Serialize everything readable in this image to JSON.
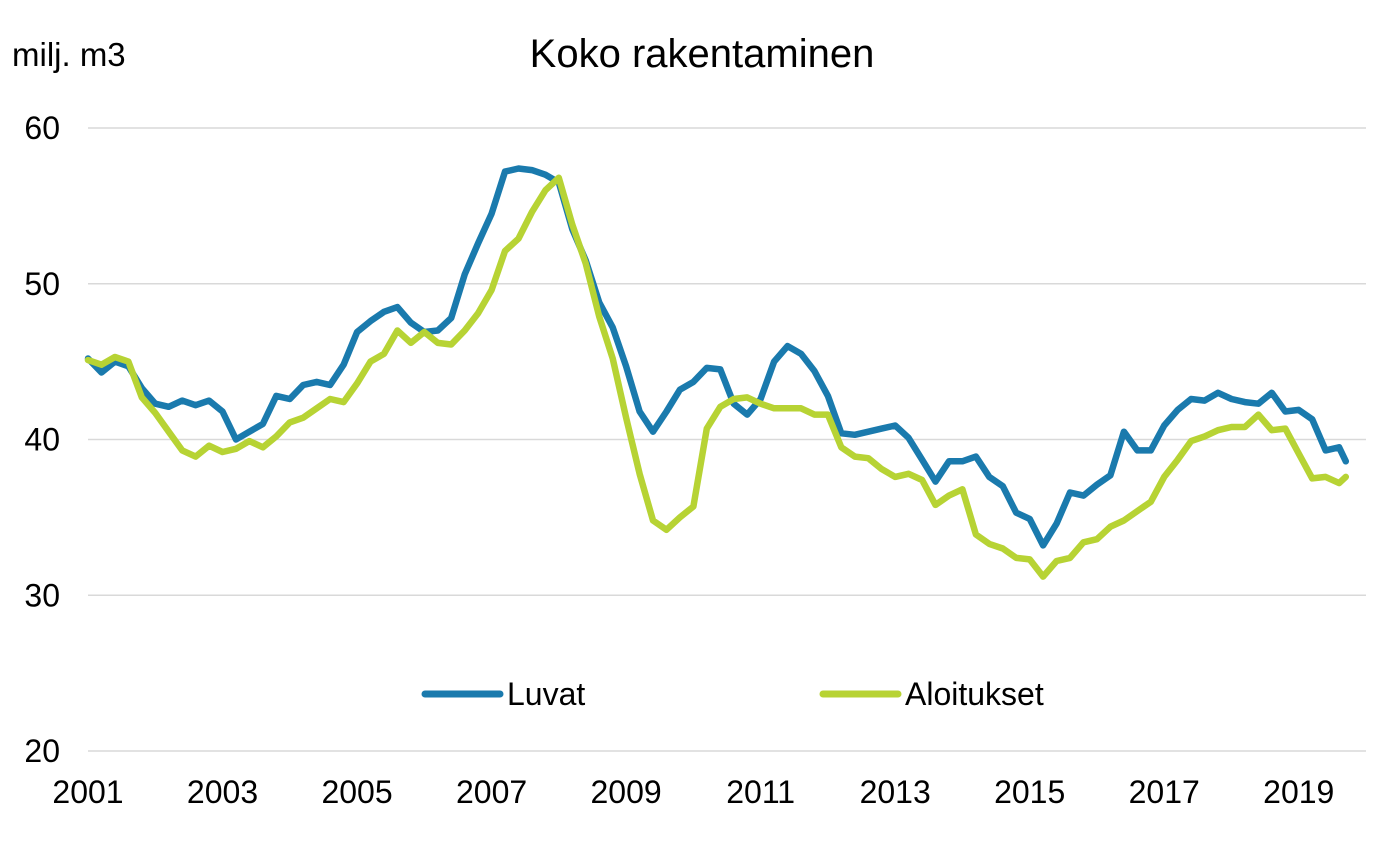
{
  "chart_data": {
    "type": "line",
    "title": "Koko rakentaminen",
    "ylabel": "milj. m3",
    "xlabel": "",
    "ylim": [
      20,
      60
    ],
    "xlim": [
      2001.0,
      2020.0
    ],
    "yticks": [
      "20",
      "30",
      "40",
      "50",
      "60"
    ],
    "xticks": [
      "2001",
      "2003",
      "2005",
      "2007",
      "2009",
      "2011",
      "2013",
      "2015",
      "2017",
      "2019"
    ],
    "grid": true,
    "legend_position": "bottom",
    "series": [
      {
        "name": "Luvat",
        "color": "#1a7aad",
        "x": [
          2001.0,
          2001.2,
          2001.4,
          2001.6,
          2001.8,
          2002.0,
          2002.2,
          2002.4,
          2002.6,
          2002.8,
          2003.0,
          2003.2,
          2003.4,
          2003.6,
          2003.8,
          2004.0,
          2004.2,
          2004.4,
          2004.6,
          2004.8,
          2005.0,
          2005.2,
          2005.4,
          2005.6,
          2005.8,
          2006.0,
          2006.2,
          2006.4,
          2006.6,
          2006.8,
          2007.0,
          2007.2,
          2007.4,
          2007.6,
          2007.8,
          2008.0,
          2008.2,
          2008.4,
          2008.6,
          2008.8,
          2009.0,
          2009.2,
          2009.4,
          2009.6,
          2009.8,
          2010.0,
          2010.2,
          2010.4,
          2010.6,
          2010.8,
          2011.0,
          2011.2,
          2011.4,
          2011.6,
          2011.8,
          2012.0,
          2012.2,
          2012.4,
          2012.6,
          2012.8,
          2013.0,
          2013.2,
          2013.4,
          2013.6,
          2013.8,
          2014.0,
          2014.2,
          2014.4,
          2014.6,
          2014.8,
          2015.0,
          2015.2,
          2015.4,
          2015.6,
          2015.8,
          2016.0,
          2016.2,
          2016.4,
          2016.6,
          2016.8,
          2017.0,
          2017.2,
          2017.4,
          2017.6,
          2017.8,
          2018.0,
          2018.2,
          2018.4,
          2018.6,
          2018.8,
          2019.0,
          2019.2,
          2019.4,
          2019.6,
          2019.7
        ],
        "values": [
          45.2,
          44.3,
          45.0,
          44.7,
          43.3,
          42.3,
          42.1,
          42.5,
          42.2,
          42.5,
          41.8,
          40.0,
          40.5,
          41.0,
          42.8,
          42.6,
          43.5,
          43.7,
          43.5,
          44.8,
          46.9,
          47.6,
          48.2,
          48.5,
          47.5,
          46.9,
          47.0,
          47.8,
          50.6,
          52.6,
          54.5,
          57.2,
          57.4,
          57.3,
          57.0,
          56.5,
          53.5,
          51.5,
          48.8,
          47.2,
          44.7,
          41.8,
          40.5,
          41.8,
          43.2,
          43.7,
          44.6,
          44.5,
          42.3,
          41.6,
          42.6,
          45.0,
          46.0,
          45.5,
          44.4,
          42.8,
          40.4,
          40.3,
          40.5,
          40.7,
          40.9,
          40.1,
          38.7,
          37.3,
          38.6,
          38.6,
          38.9,
          37.6,
          37.0,
          35.3,
          34.9,
          33.2,
          34.6,
          36.6,
          36.4,
          37.1,
          37.7,
          40.5,
          39.3,
          39.3,
          40.9,
          41.9,
          42.6,
          42.5,
          43.0,
          42.6,
          42.4,
          42.3,
          43.0,
          41.8,
          41.9,
          41.3,
          39.3,
          39.5,
          38.6
        ]
      },
      {
        "name": "Aloitukset",
        "color": "#b7d334",
        "x": [
          2001.0,
          2001.2,
          2001.4,
          2001.6,
          2001.8,
          2002.0,
          2002.2,
          2002.4,
          2002.6,
          2002.8,
          2003.0,
          2003.2,
          2003.4,
          2003.6,
          2003.8,
          2004.0,
          2004.2,
          2004.4,
          2004.6,
          2004.8,
          2005.0,
          2005.2,
          2005.4,
          2005.6,
          2005.8,
          2006.0,
          2006.2,
          2006.4,
          2006.6,
          2006.8,
          2007.0,
          2007.2,
          2007.4,
          2007.6,
          2007.8,
          2008.0,
          2008.2,
          2008.4,
          2008.6,
          2008.8,
          2009.0,
          2009.2,
          2009.4,
          2009.6,
          2009.8,
          2010.0,
          2010.2,
          2010.4,
          2010.6,
          2010.8,
          2011.0,
          2011.2,
          2011.4,
          2011.6,
          2011.8,
          2012.0,
          2012.2,
          2012.4,
          2012.6,
          2012.8,
          2013.0,
          2013.2,
          2013.4,
          2013.6,
          2013.8,
          2014.0,
          2014.2,
          2014.4,
          2014.6,
          2014.8,
          2015.0,
          2015.2,
          2015.4,
          2015.6,
          2015.8,
          2016.0,
          2016.2,
          2016.4,
          2016.6,
          2016.8,
          2017.0,
          2017.2,
          2017.4,
          2017.6,
          2017.8,
          2018.0,
          2018.2,
          2018.4,
          2018.6,
          2018.8,
          2019.0,
          2019.2,
          2019.4,
          2019.6,
          2019.7
        ],
        "values": [
          45.1,
          44.8,
          45.3,
          45.0,
          42.7,
          41.7,
          40.5,
          39.3,
          38.9,
          39.6,
          39.2,
          39.4,
          39.9,
          39.5,
          40.2,
          41.1,
          41.4,
          42.0,
          42.6,
          42.4,
          43.6,
          45.0,
          45.5,
          47.0,
          46.2,
          46.9,
          46.2,
          46.1,
          47.0,
          48.1,
          49.6,
          52.1,
          52.9,
          54.6,
          56.0,
          56.8,
          53.8,
          51.3,
          47.9,
          45.2,
          41.4,
          37.8,
          34.8,
          34.2,
          35.0,
          35.7,
          40.7,
          42.1,
          42.6,
          42.7,
          42.3,
          42.0,
          42.0,
          42.0,
          41.6,
          41.6,
          39.5,
          38.9,
          38.8,
          38.1,
          37.6,
          37.8,
          37.4,
          35.8,
          36.4,
          36.8,
          33.9,
          33.3,
          33.0,
          32.4,
          32.3,
          31.2,
          32.2,
          32.4,
          33.4,
          33.6,
          34.4,
          34.8,
          35.4,
          36.0,
          37.6,
          38.7,
          39.9,
          40.2,
          40.6,
          40.8,
          40.8,
          41.6,
          40.6,
          40.7,
          39.1,
          37.5,
          37.6,
          37.2,
          37.6
        ]
      }
    ]
  }
}
